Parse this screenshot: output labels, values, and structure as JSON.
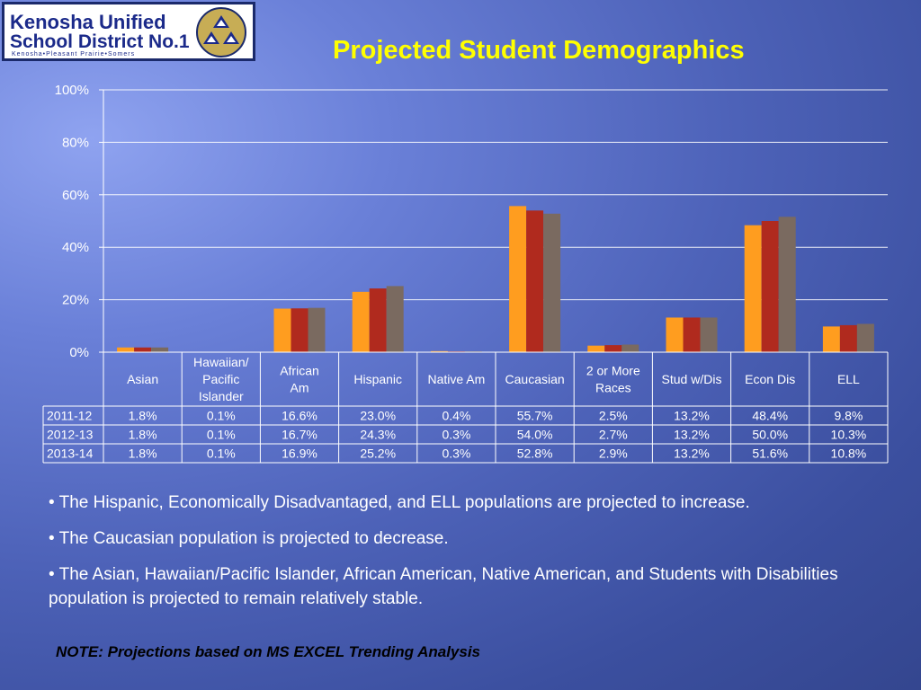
{
  "logo": {
    "line1": "Kenosha Unified",
    "line2": "School District No.1",
    "line3": "Kenosha•Pleasant Prairie•Somers"
  },
  "title": "Projected Student Demographics",
  "chart_data": {
    "type": "bar",
    "title": "",
    "ylim": [
      0,
      100
    ],
    "yticks": [
      "0%",
      "20%",
      "40%",
      "60%",
      "80%",
      "100%"
    ],
    "grid": true,
    "categories": [
      [
        "Asian"
      ],
      [
        "Hawaiian/",
        "Pacific",
        "Islander"
      ],
      [
        "African",
        "Am"
      ],
      [
        "Hispanic"
      ],
      [
        "Native Am"
      ],
      [
        "Caucasian"
      ],
      [
        "2 or More",
        "Races"
      ],
      [
        "Stud w/Dis"
      ],
      [
        "Econ Dis"
      ],
      [
        "ELL"
      ]
    ],
    "series": [
      {
        "name": "2011-12",
        "color": "#ff9d1f",
        "values": [
          1.8,
          0.1,
          16.6,
          23.0,
          0.4,
          55.7,
          2.5,
          13.2,
          48.4,
          9.8
        ],
        "labels": [
          "1.8%",
          "0.1%",
          "16.6%",
          "23.0%",
          "0.4%",
          "55.7%",
          "2.5%",
          "13.2%",
          "48.4%",
          "9.8%"
        ]
      },
      {
        "name": "2012-13",
        "color": "#b02a1e",
        "values": [
          1.8,
          0.1,
          16.7,
          24.3,
          0.3,
          54.0,
          2.7,
          13.2,
          50.0,
          10.3
        ],
        "labels": [
          "1.8%",
          "0.1%",
          "16.7%",
          "24.3%",
          "0.3%",
          "54.0%",
          "2.7%",
          "13.2%",
          "50.0%",
          "10.3%"
        ]
      },
      {
        "name": "2013-14",
        "color": "#7a6a60",
        "values": [
          1.8,
          0.1,
          16.9,
          25.2,
          0.3,
          52.8,
          2.9,
          13.2,
          51.6,
          10.8
        ],
        "labels": [
          "1.8%",
          "0.1%",
          "16.9%",
          "25.2%",
          "0.3%",
          "52.8%",
          "2.9%",
          "13.2%",
          "51.6%",
          "10.8%"
        ]
      }
    ]
  },
  "bullets": [
    "• The Hispanic, Economically Disadvantaged, and ELL populations are projected to increase.",
    "• The Caucasian population is projected to decrease.",
    "• The Asian, Hawaiian/Pacific Islander, African American, Native American, and Students with Disabilities population is projected to remain relatively stable."
  ],
  "note": "NOTE: Projections based on MS EXCEL Trending Analysis"
}
